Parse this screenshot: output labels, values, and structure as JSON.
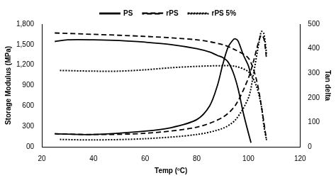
{
  "chart_data": {
    "type": "line",
    "x_label": "Temp (ºC)",
    "y_label": "Storage Modulus (MPa)",
    "y2_label": "Tan delta",
    "xlim": [
      20,
      120
    ],
    "xticks": [
      20,
      40,
      60,
      80,
      100,
      120
    ],
    "ylim": [
      0,
      1800
    ],
    "yticks": [
      {
        "value": 0,
        "label": "00"
      },
      300,
      600,
      900,
      {
        "value": 1200,
        "label": "1,200"
      },
      {
        "value": 1500,
        "label": "1,500"
      },
      {
        "value": 1800,
        "label": "1,800"
      }
    ],
    "y2lim": [
      0,
      500
    ],
    "y2ticks": [
      0,
      100,
      200,
      300,
      400,
      500
    ],
    "grid": false,
    "legend": "top",
    "series": [
      {
        "name": "PS",
        "color": "#000000",
        "line_style": "solid",
        "x": [
          25,
          30,
          40,
          50,
          60,
          70,
          80,
          85,
          88,
          90,
          92,
          94,
          96,
          98,
          100,
          101
        ],
        "values": [
          1545,
          1570,
          1570,
          1560,
          1535,
          1500,
          1440,
          1390,
          1340,
          1310,
          1250,
          1100,
          850,
          500,
          200,
          60
        ]
      },
      {
        "name": "rPS",
        "color": "#000000",
        "line_style": "dashed",
        "x": [
          25,
          40,
          60,
          80,
          90,
          95,
          100,
          103,
          105,
          107
        ],
        "values": [
          1670,
          1650,
          1620,
          1570,
          1500,
          1420,
          1300,
          1000,
          600,
          100
        ]
      },
      {
        "name": "rPS 5%",
        "color": "#000000",
        "line_style": "dotted",
        "x": [
          27,
          40,
          50,
          60,
          70,
          80,
          90,
          95,
          100,
          103,
          105,
          106,
          107
        ],
        "values": [
          1120,
          1110,
          1110,
          1130,
          1160,
          1180,
          1190,
          1180,
          1100,
          900,
          600,
          300,
          100
        ]
      },
      {
        "name": "PS",
        "color": "#000000",
        "line_style": "solid",
        "axis": "y2",
        "x": [
          25,
          40,
          60,
          70,
          80,
          85,
          88,
          90,
          92,
          94,
          95,
          96,
          98,
          100,
          101
        ],
        "values": [
          53,
          50,
          64,
          78,
          111,
          167,
          250,
          333,
          403,
          435,
          440,
          431,
          375,
          330,
          290
        ]
      },
      {
        "name": "rPS",
        "color": "#000000",
        "line_style": "dashed",
        "axis": "y2",
        "x": [
          25,
          40,
          60,
          80,
          90,
          95,
          100,
          102,
          104,
          105,
          106,
          107
        ],
        "values": [
          53,
          50,
          55,
          80,
          120,
          170,
          280,
          350,
          430,
          455,
          440,
          360
        ]
      },
      {
        "name": "rPS 5%",
        "color": "#000000",
        "line_style": "dotted",
        "axis": "y2",
        "x": [
          27,
          40,
          60,
          80,
          90,
          95,
          100,
          102,
          104,
          105,
          106,
          107
        ],
        "values": [
          30,
          28,
          33,
          50,
          75,
          110,
          200,
          300,
          420,
          470,
          460,
          380
        ]
      }
    ]
  }
}
